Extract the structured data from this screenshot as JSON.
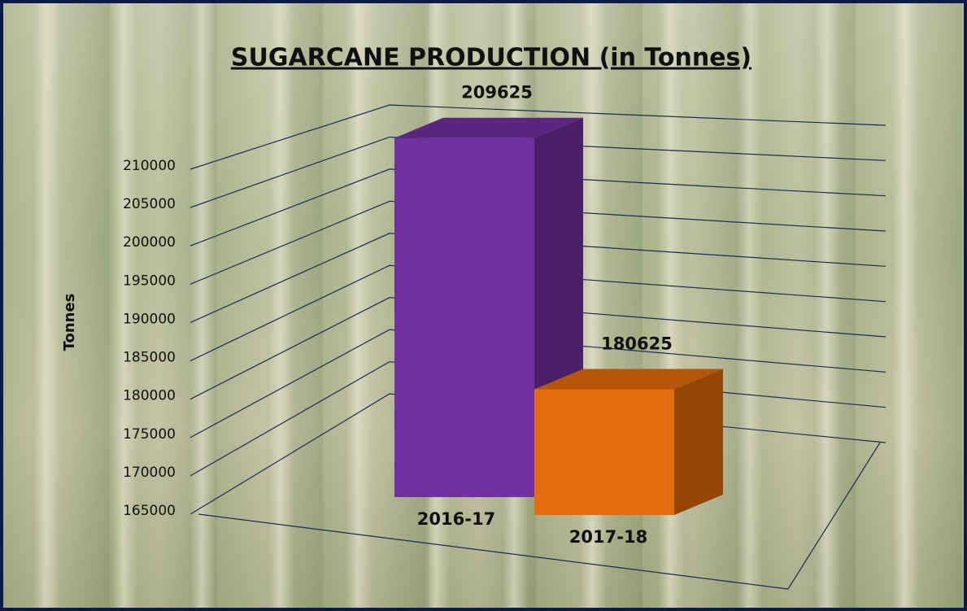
{
  "chart_data": {
    "type": "bar3d",
    "title": "SUGARCANE PRODUCTION  (in Tonnes)",
    "y_label": "Tonnes",
    "categories": [
      "2016-17",
      "2017-18"
    ],
    "values": [
      209625,
      180625
    ],
    "colors": [
      "#7030a0",
      "#e46c0a"
    ],
    "ylim": [
      165000,
      210000
    ],
    "yticks": [
      165000,
      170000,
      175000,
      180000,
      185000,
      190000,
      195000,
      200000,
      205000,
      210000
    ],
    "grid": true
  }
}
